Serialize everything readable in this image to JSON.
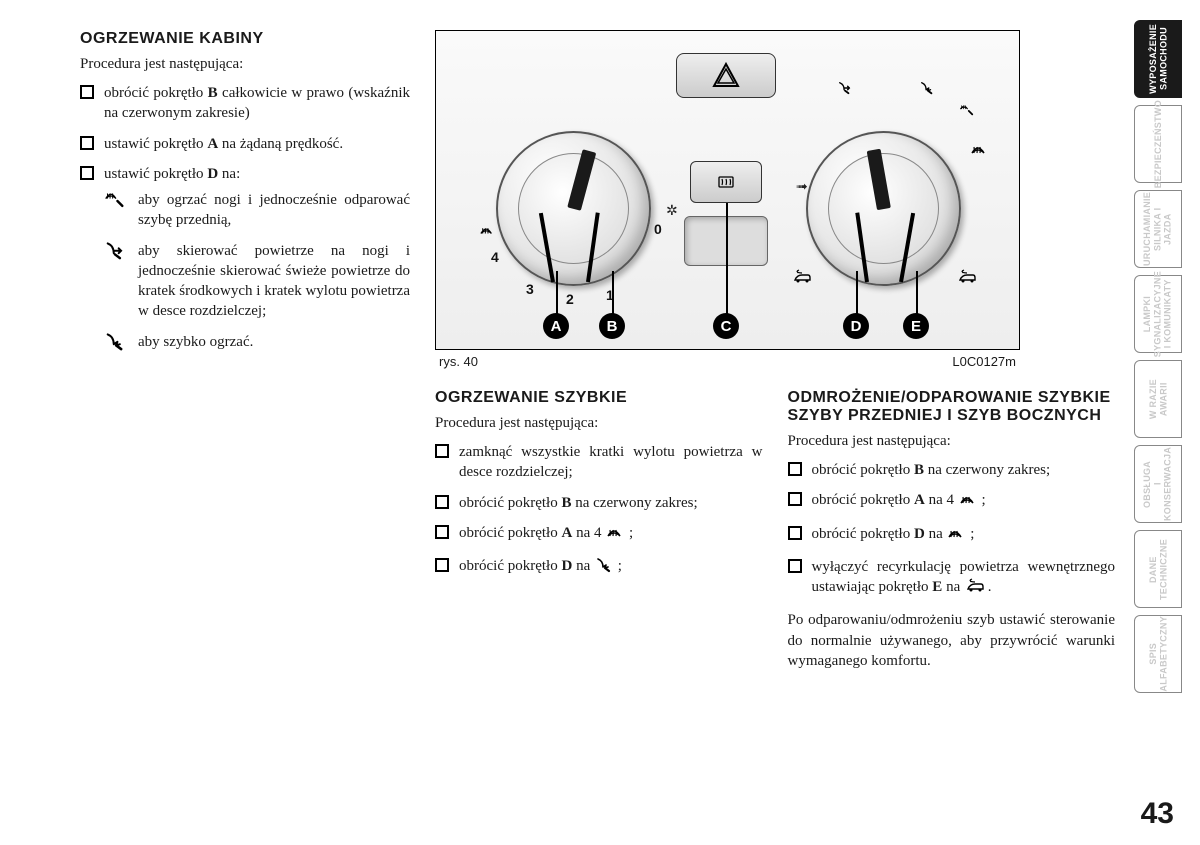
{
  "pageNumber": "43",
  "figure": {
    "caption": "rys. 40",
    "code": "L0C0127m",
    "labels": [
      "A",
      "B",
      "C",
      "D",
      "E"
    ],
    "fanNumbers": [
      "0",
      "1",
      "2",
      "3",
      "4"
    ]
  },
  "sections": {
    "s1": {
      "title": "OGRZEWANIE KABINY",
      "intro": "Procedura jest następująca:",
      "items": [
        {
          "text": "obrócić pokrętło <b>B</b> całkowicie w prawo (wskaźnik na czerwonym zakresie)"
        },
        {
          "text": "ustawić pokrętło <b>A</b> na żądaną prędkość."
        },
        {
          "text": "ustawić pokrętło <b>D</b> na:",
          "sub": [
            {
              "icon": "defrost-feet",
              "text": "aby ogrzać nogi i jednocześnie odparować szybę przednią,"
            },
            {
              "icon": "feet-face",
              "text": "aby skierować powietrze na nogi i jednocześnie skierować świeże powietrze do kratek środkowych i kratek wylotu powietrza w desce rozdzielczej;"
            },
            {
              "icon": "feet",
              "text": "aby szybko ogrzać."
            }
          ]
        }
      ]
    },
    "s2": {
      "title": "OGRZEWANIE SZYBKIE",
      "intro": "Procedura jest następująca:",
      "items": [
        {
          "text": "zamknąć wszystkie kratki wylotu powietrza w desce rozdzielczej;"
        },
        {
          "text": "obrócić pokrętło <b>B</b> na czerwony zakres;"
        },
        {
          "text": "obrócić pokrętło <b>A</b> na 4 ",
          "trailingIcon": "defrost",
          "trailing": " ;"
        },
        {
          "text": "obrócić pokrętło <b>D</b> na ",
          "trailingIcon": "feet",
          "trailing": " ;"
        }
      ]
    },
    "s3": {
      "title": "ODMROŻENIE/ODPAROWANIE SZYBKIE SZYBY PRZEDNIEJ I SZYB BOCZNYCH",
      "intro": "Procedura jest następująca:",
      "items": [
        {
          "text": "obrócić pokrętło <b>B</b> na czerwony zakres;"
        },
        {
          "text": "obrócić pokrętło <b>A</b> na 4 ",
          "trailingIcon": "defrost",
          "trailing": " ;"
        },
        {
          "text": "obrócić pokrętło <b>D</b> na ",
          "trailingIcon": "defrost",
          "trailing": " ;"
        },
        {
          "text": "wyłączyć recyrkulację powietrza wewnętrznego ustawiając pokrętło <b>E</b> na ",
          "trailingIcon": "recirc-off",
          "trailing": " ."
        }
      ],
      "after": "Po odparowaniu/odmrożeniu szyb ustawić sterowanie do normalnie używanego, aby przywrócić warunki wymaganego komfortu."
    }
  },
  "tabs": [
    {
      "label": "WYPOSAŻENIE\nSAMOCHODU",
      "active": true
    },
    {
      "label": "BEZPIECZEŃSTWO",
      "active": false
    },
    {
      "label": "URUCHAMIANIE\nSILNIKA I JAZDA",
      "active": false
    },
    {
      "label": "LAMPKI\nSYGNALIZACYJNE\nI KOMUNIKATY",
      "active": false
    },
    {
      "label": "W RAZIE\nAWARII",
      "active": false
    },
    {
      "label": "OBSŁUGA\nI KONSERWACJA",
      "active": false
    },
    {
      "label": "DANE\nTECHNICZNE",
      "active": false
    },
    {
      "label": "SPIS\nALFABETYCZNY",
      "active": false
    }
  ],
  "colors": {
    "text": "#1a1a1a",
    "tabInactiveText": "#c9c9c9",
    "tabActiveBg": "#1a1a1a",
    "panelBg": "#eeeeee"
  }
}
